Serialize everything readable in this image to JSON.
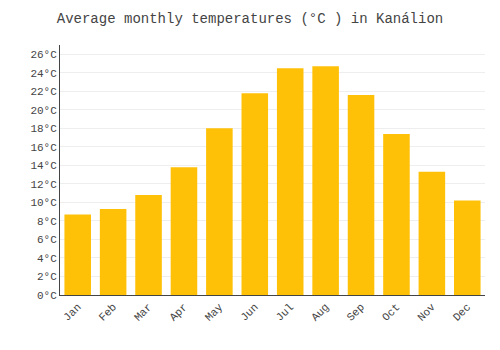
{
  "chart_data": {
    "type": "bar",
    "title": "Average monthly temperatures (°C ) in Kanálion",
    "categories": [
      "Jan",
      "Feb",
      "Mar",
      "Apr",
      "May",
      "Jun",
      "Jul",
      "Aug",
      "Sep",
      "Oct",
      "Nov",
      "Dec"
    ],
    "values": [
      8.7,
      9.3,
      10.8,
      13.8,
      18.0,
      21.8,
      24.5,
      24.7,
      21.6,
      17.4,
      13.3,
      10.2
    ],
    "color": "#FFC107",
    "ylim": [
      0,
      27
    ],
    "yticks": [
      {
        "value": 0,
        "label": "0°C"
      },
      {
        "value": 2,
        "label": "2°C"
      },
      {
        "value": 4,
        "label": "4°C"
      },
      {
        "value": 6,
        "label": "6°C"
      },
      {
        "value": 8,
        "label": "8°C"
      },
      {
        "value": 10,
        "label": "10°C"
      },
      {
        "value": 12,
        "label": "12°C"
      },
      {
        "value": 14,
        "label": "14°C"
      },
      {
        "value": 16,
        "label": "16°C"
      },
      {
        "value": 18,
        "label": "18°C"
      },
      {
        "value": 20,
        "label": "20°C"
      },
      {
        "value": 22,
        "label": "22°C"
      },
      {
        "value": 24,
        "label": "24°C"
      },
      {
        "value": 26,
        "label": "26°C"
      }
    ],
    "grid": true
  }
}
